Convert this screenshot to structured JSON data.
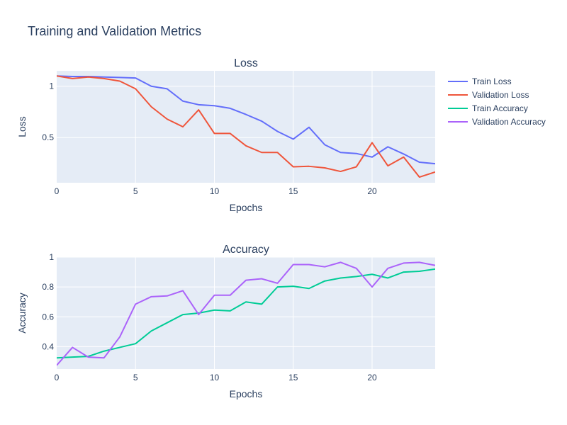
{
  "figure": {
    "title": "Training and Validation Metrics"
  },
  "legend": {
    "placement": "top-right"
  },
  "chart_data": [
    {
      "type": "line",
      "title": "Loss",
      "xlabel": "Epochs",
      "ylabel": "Loss",
      "xlim": [
        0,
        24
      ],
      "ylim": [
        0.06,
        1.15
      ],
      "xticks": [
        0,
        5,
        10,
        15,
        20
      ],
      "yticks": [
        0.5,
        1
      ],
      "grid": true,
      "x": [
        0,
        1,
        2,
        3,
        4,
        5,
        6,
        7,
        8,
        9,
        10,
        11,
        12,
        13,
        14,
        15,
        16,
        17,
        18,
        19,
        20,
        21,
        22,
        23,
        24
      ],
      "series": [
        {
          "name": "Train Loss",
          "color": "#636efa",
          "values": [
            1.1,
            1.095,
            1.095,
            1.09,
            1.085,
            1.08,
            1.0,
            0.975,
            0.855,
            0.82,
            0.81,
            0.785,
            0.725,
            0.66,
            0.56,
            0.485,
            0.6,
            0.43,
            0.355,
            0.345,
            0.31,
            0.41,
            0.34,
            0.26,
            0.245
          ]
        },
        {
          "name": "Validation Loss",
          "color": "#ef553b",
          "values": [
            1.1,
            1.075,
            1.09,
            1.075,
            1.05,
            0.975,
            0.8,
            0.68,
            0.605,
            0.77,
            0.54,
            0.54,
            0.42,
            0.355,
            0.355,
            0.215,
            0.22,
            0.205,
            0.17,
            0.215,
            0.45,
            0.225,
            0.31,
            0.115,
            0.165
          ]
        }
      ]
    },
    {
      "type": "line",
      "title": "Accuracy",
      "xlabel": "Epochs",
      "ylabel": "Accuracy",
      "xlim": [
        0,
        24
      ],
      "ylim": [
        0.25,
        1.0
      ],
      "xticks": [
        0,
        5,
        10,
        15,
        20
      ],
      "yticks": [
        0.4,
        0.6,
        0.8,
        1
      ],
      "grid": true,
      "x": [
        0,
        1,
        2,
        3,
        4,
        5,
        6,
        7,
        8,
        9,
        10,
        11,
        12,
        13,
        14,
        15,
        16,
        17,
        18,
        19,
        20,
        21,
        22,
        23,
        24
      ],
      "series": [
        {
          "name": "Train Accuracy",
          "color": "#00cc96",
          "values": [
            0.325,
            0.33,
            0.335,
            0.37,
            0.395,
            0.42,
            0.505,
            0.56,
            0.615,
            0.625,
            0.645,
            0.64,
            0.7,
            0.685,
            0.8,
            0.805,
            0.79,
            0.84,
            0.86,
            0.87,
            0.885,
            0.86,
            0.9,
            0.905,
            0.92
          ]
        },
        {
          "name": "Validation Accuracy",
          "color": "#ab63fa",
          "values": [
            0.275,
            0.395,
            0.33,
            0.325,
            0.465,
            0.685,
            0.735,
            0.74,
            0.775,
            0.615,
            0.745,
            0.745,
            0.845,
            0.855,
            0.825,
            0.95,
            0.95,
            0.935,
            0.965,
            0.925,
            0.8,
            0.925,
            0.96,
            0.965,
            0.945
          ]
        }
      ]
    }
  ]
}
